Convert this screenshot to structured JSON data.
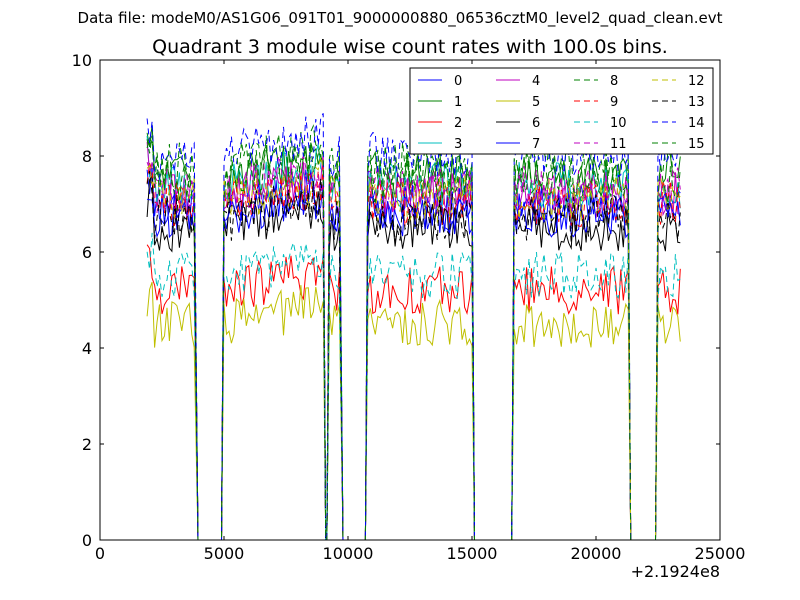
{
  "figure": {
    "suptitle": "Data file: modeM0/AS1G06_091T01_9000000880_06536cztM0_level2_quad_clean.evt",
    "title": "Quadrant 3 module wise count rates with 100.0s bins.",
    "offset_label": "+2.1924e8"
  },
  "chart_data": {
    "type": "line",
    "xlim": [
      0,
      25000
    ],
    "ylim": [
      0,
      10
    ],
    "x_ticks": [
      0,
      5000,
      10000,
      15000,
      20000,
      25000
    ],
    "x_tick_labels": [
      "0",
      "5000",
      "10000",
      "15000",
      "20000",
      "25000"
    ],
    "y_ticks": [
      0,
      2,
      4,
      6,
      8,
      10
    ],
    "y_tick_labels": [
      "0",
      "2",
      "4",
      "6",
      "8",
      "10"
    ],
    "x_offset": 219240000,
    "legend_position": "top-right",
    "legend_columns": 4,
    "grid": false,
    "segments": [
      {
        "start": 1900,
        "end": 3850
      },
      {
        "start": 5000,
        "end": 9000
      },
      {
        "start": 9250,
        "end": 9700
      },
      {
        "start": 10800,
        "end": 15000
      },
      {
        "start": 16700,
        "end": 21300
      },
      {
        "start": 22500,
        "end": 23400
      }
    ],
    "series": [
      {
        "name": "0",
        "color": "#0000ff",
        "dash": "solid",
        "level": 6.9
      },
      {
        "name": "1",
        "color": "#008000",
        "dash": "solid",
        "level": 7.6
      },
      {
        "name": "2",
        "color": "#ff0000",
        "dash": "solid",
        "level": 5.2
      },
      {
        "name": "3",
        "color": "#00bfbf",
        "dash": "solid",
        "level": 7.4
      },
      {
        "name": "4",
        "color": "#bf00bf",
        "dash": "solid",
        "level": 7.2
      },
      {
        "name": "5",
        "color": "#bfbf00",
        "dash": "solid",
        "level": 4.5
      },
      {
        "name": "6",
        "color": "#000000",
        "dash": "solid",
        "level": 6.5
      },
      {
        "name": "7",
        "color": "#0000ff",
        "dash": "solid",
        "level": 6.8
      },
      {
        "name": "8",
        "color": "#008000",
        "dash": "dashed",
        "level": 7.8
      },
      {
        "name": "9",
        "color": "#ff0000",
        "dash": "dashed",
        "level": 7.0
      },
      {
        "name": "10",
        "color": "#00bfbf",
        "dash": "dashed",
        "level": 5.5
      },
      {
        "name": "11",
        "color": "#bf00bf",
        "dash": "dashed",
        "level": 7.3
      },
      {
        "name": "12",
        "color": "#bfbf00",
        "dash": "dashed",
        "level": 7.1
      },
      {
        "name": "13",
        "color": "#000000",
        "dash": "dashed",
        "level": 6.7
      },
      {
        "name": "14",
        "color": "#0000ff",
        "dash": "dashed",
        "level": 8.0
      },
      {
        "name": "15",
        "color": "#008000",
        "dash": "dashed",
        "level": 7.5
      }
    ]
  }
}
